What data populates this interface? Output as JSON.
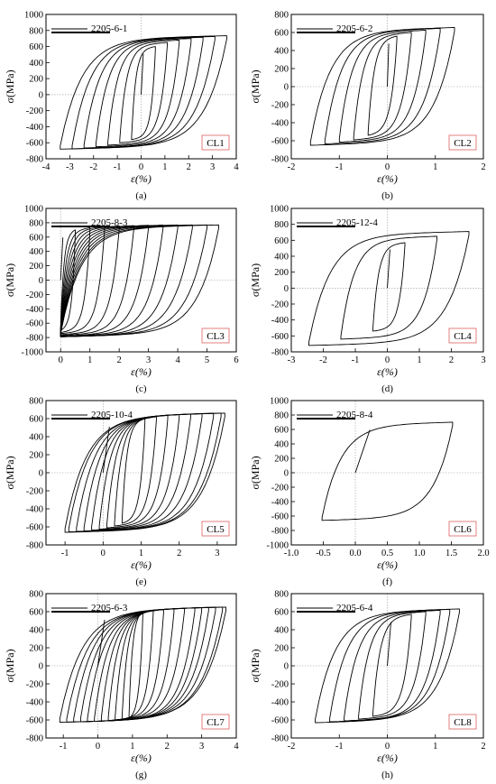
{
  "chart_data": [
    {
      "type": "line",
      "panel_label": "(a)",
      "specimen": "2205-6-1",
      "tag": "CL1",
      "xlabel": "ε(%)",
      "ylabel": "σ(MPa)",
      "xlim": [
        -4,
        4
      ],
      "ylim": [
        -800,
        1000
      ],
      "xticks": [
        "-4",
        "-3",
        "-2",
        "-1",
        "0",
        "1",
        "2",
        "3",
        "4"
      ],
      "yticks": [
        "-800",
        "-600",
        "-400",
        "-200",
        "0",
        "200",
        "400",
        "600",
        "800",
        "1000"
      ],
      "series": [
        {
          "strain_amplitude": [
            0.5,
            1.0,
            1.5,
            2.0,
            2.5,
            3.0,
            3.5
          ],
          "offset": 0.1,
          "stress_peak": [
            600,
            650,
            680,
            700,
            715,
            725,
            735
          ],
          "stress_trough": [
            -560,
            -600,
            -630,
            -650,
            -665,
            -675,
            -680
          ]
        }
      ]
    },
    {
      "type": "line",
      "panel_label": "(b)",
      "specimen": "2205-6-2",
      "tag": "CL2",
      "xlabel": "ε(%)",
      "ylabel": "σ(MPa)",
      "xlim": [
        -2,
        2
      ],
      "ylim": [
        -800,
        800
      ],
      "xticks": [
        "-2",
        "-1",
        "0",
        "1",
        "2"
      ],
      "yticks": [
        "-800",
        "-600",
        "-400",
        "-200",
        "0",
        "200",
        "400",
        "600",
        "800"
      ],
      "series": [
        {
          "strain_amplitude": [
            0.3,
            0.6,
            0.9,
            1.2,
            1.5
          ],
          "offset": -0.1,
          "stress_peak": [
            560,
            600,
            625,
            645,
            655
          ],
          "stress_trough": [
            -540,
            -590,
            -615,
            -635,
            -650
          ]
        }
      ]
    },
    {
      "type": "line",
      "panel_label": "(c)",
      "specimen": "2205-8-3",
      "tag": "CL3",
      "xlabel": "ε(%)",
      "ylabel": "σ(MPa)",
      "xlim": [
        -0.5,
        6
      ],
      "ylim": [
        -1000,
        1000
      ],
      "xticks": [
        "0",
        "1",
        "2",
        "3",
        "4",
        "5",
        "6"
      ],
      "yticks": [
        "-1000",
        "-800",
        "-600",
        "-400",
        "-200",
        "0",
        "200",
        "400",
        "600",
        "800",
        "1000"
      ],
      "series": [
        {
          "strain_max": [
            0.5,
            1.0,
            1.5,
            2.0,
            2.5,
            3.0,
            3.5,
            4.0,
            4.5,
            5.0,
            5.4
          ],
          "strain_min": 0.0,
          "stress_peak": [
            700,
            730,
            745,
            755,
            760,
            765,
            768,
            770,
            770,
            770,
            770
          ],
          "stress_trough": [
            -700,
            -730,
            -745,
            -760,
            -770,
            -780,
            -785,
            -790,
            -790,
            -790,
            -790
          ]
        }
      ]
    },
    {
      "type": "line",
      "panel_label": "(d)",
      "specimen": "2205-12-4",
      "tag": "CL4",
      "xlabel": "ε(%)",
      "ylabel": "σ(MPa)",
      "xlim": [
        -3,
        3
      ],
      "ylim": [
        -800,
        1000
      ],
      "xticks": [
        "-3",
        "-2",
        "-1",
        "0",
        "1",
        "2",
        "3"
      ],
      "yticks": [
        "-800",
        "-600",
        "-400",
        "-200",
        "0",
        "200",
        "400",
        "600",
        "800",
        "1000"
      ],
      "series": [
        {
          "strain_amplitude": [
            0.5,
            1.5,
            2.5
          ],
          "offset": 0.05,
          "stress_peak": [
            570,
            650,
            710
          ],
          "stress_trough": [
            -540,
            -640,
            -720
          ]
        }
      ]
    },
    {
      "type": "line",
      "panel_label": "(e)",
      "specimen": "2205-10-4",
      "tag": "CL5",
      "xlabel": "ε(%)",
      "ylabel": "σ(MPa)",
      "xlim": [
        -1.5,
        3.5
      ],
      "ylim": [
        -800,
        800
      ],
      "xticks": [
        "-1",
        "0",
        "1",
        "2",
        "3"
      ],
      "yticks": [
        "-800",
        "-600",
        "-400",
        "-200",
        "0",
        "200",
        "400",
        "600",
        "800"
      ],
      "series": [
        {
          "strain_min": [
            0.5,
            0.3,
            0.1,
            -0.1,
            -0.3,
            -0.5,
            -0.7,
            -0.9,
            -1.0
          ],
          "strain_max": [
            1.1,
            1.4,
            1.7,
            2.0,
            2.3,
            2.6,
            2.9,
            3.1,
            3.2
          ],
          "stress_peak": [
            600,
            620,
            635,
            645,
            650,
            655,
            660,
            660,
            660
          ],
          "stress_trough": [
            -560,
            -590,
            -610,
            -625,
            -635,
            -645,
            -650,
            -655,
            -660
          ]
        }
      ]
    },
    {
      "type": "line",
      "panel_label": "(f)",
      "specimen": "2205-8-4",
      "tag": "CL6",
      "xlabel": "ε(%)",
      "ylabel": "σ(MPa)",
      "xlim": [
        -1.0,
        2.0
      ],
      "ylim": [
        -1000,
        1000
      ],
      "xticks": [
        "-1.0",
        "-0.5",
        "0.0",
        "0.5",
        "1.0",
        "1.5",
        "2.0"
      ],
      "yticks": [
        "-1000",
        "-800",
        "-600",
        "-400",
        "-200",
        "0",
        "200",
        "400",
        "600",
        "800",
        "1000"
      ],
      "series": [
        {
          "strain_min": -0.52,
          "strain_max": 1.52,
          "stress_peak": 700,
          "stress_trough": -660
        }
      ]
    },
    {
      "type": "line",
      "panel_label": "(g)",
      "specimen": "2205-6-3",
      "tag": "CL7",
      "xlabel": "ε(%)",
      "ylabel": "σ(MPa)",
      "xlim": [
        -1.5,
        4
      ],
      "ylim": [
        -800,
        800
      ],
      "xticks": [
        "-1",
        "0",
        "1",
        "2",
        "3",
        "4"
      ],
      "yticks": [
        "-800",
        "-600",
        "-400",
        "-200",
        "0",
        "200",
        "400",
        "600",
        "800"
      ],
      "series": [
        {
          "strain_min": [
            0.9,
            0.7,
            0.5,
            0.3,
            0.1,
            -0.1,
            -0.3,
            -0.5,
            -0.7,
            -0.9,
            -1.1
          ],
          "strain_max": [
            1.3,
            1.6,
            1.9,
            2.2,
            2.5,
            2.8,
            3.0,
            3.2,
            3.4,
            3.6,
            3.7
          ],
          "stress_peak": [
            600,
            615,
            625,
            632,
            638,
            642,
            645,
            648,
            650,
            650,
            650
          ],
          "stress_trough": [
            -580,
            -590,
            -598,
            -605,
            -610,
            -615,
            -618,
            -620,
            -622,
            -624,
            -625
          ]
        }
      ]
    },
    {
      "type": "line",
      "panel_label": "(h)",
      "specimen": "2205-6-4",
      "tag": "CL8",
      "xlabel": "ε(%)",
      "ylabel": "σ(MPa)",
      "xlim": [
        -2,
        2
      ],
      "ylim": [
        -800,
        800
      ],
      "xticks": [
        "-2",
        "-1",
        "0",
        "1",
        "2"
      ],
      "yticks": [
        "-800",
        "-600",
        "-400",
        "-200",
        "0",
        "200",
        "400",
        "600",
        "800"
      ],
      "series": [
        {
          "strain_min": [
            -0.3,
            -0.6,
            -0.9,
            -1.2,
            -1.5
          ],
          "strain_max": [
            0.5,
            0.8,
            1.1,
            1.3,
            1.5
          ],
          "stress_peak": [
            570,
            600,
            615,
            625,
            630
          ],
          "stress_trough": [
            -560,
            -590,
            -610,
            -620,
            -630
          ]
        }
      ]
    }
  ]
}
